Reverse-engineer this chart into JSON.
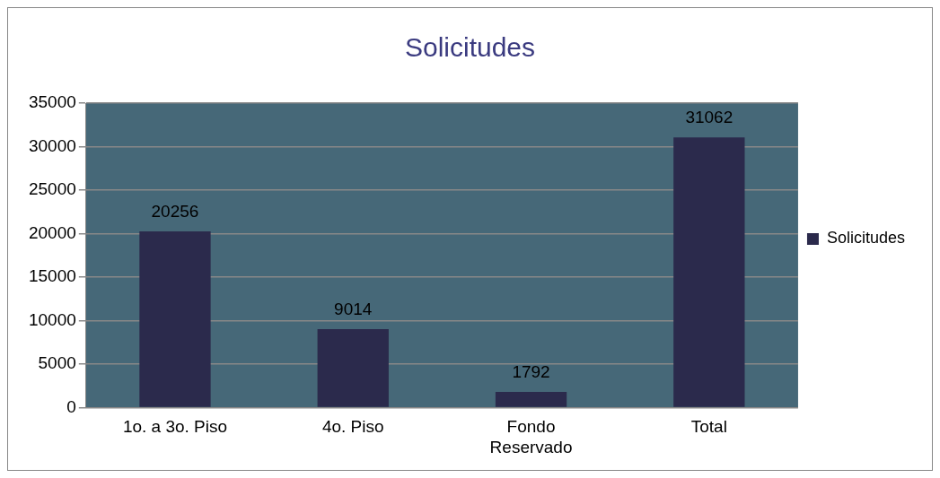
{
  "chart_data": {
    "type": "bar",
    "title": "Solicitudes",
    "categories": [
      "1o. a 3o. Piso",
      "4o. Piso",
      "Fondo\nReservado",
      "Total"
    ],
    "series": [
      {
        "name": "Solicitudes",
        "color": "#2b2a4c",
        "values": [
          20256,
          9014,
          1792,
          31062
        ]
      }
    ],
    "ylim": [
      0,
      35000
    ],
    "yticks": [
      0,
      5000,
      10000,
      15000,
      20000,
      25000,
      30000,
      35000
    ],
    "grid": "y",
    "legend": "right",
    "data_labels": true
  }
}
